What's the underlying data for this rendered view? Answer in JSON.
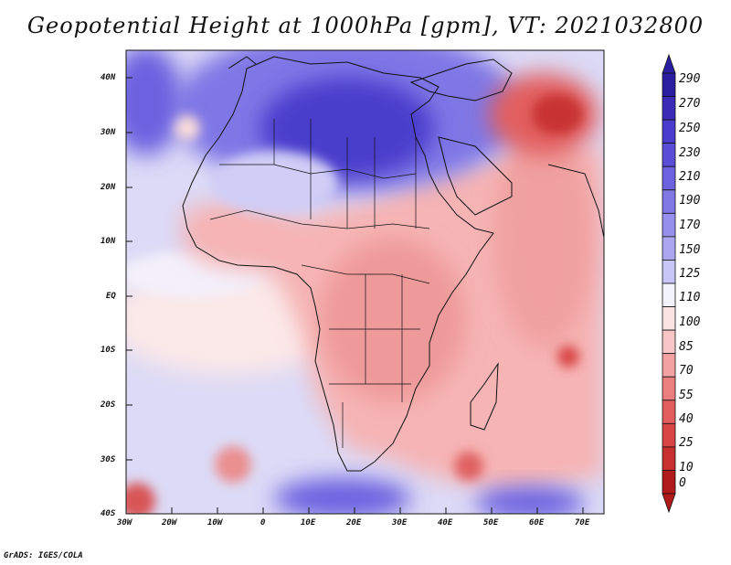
{
  "title": "Geopotential Height at 1000hPa [gpm], VT: 2021032800",
  "credit": "GrADS: IGES/COLA",
  "map": {
    "region": "Africa",
    "lat_labels": [
      "40N",
      "30N",
      "20N",
      "10N",
      "EQ",
      "10S",
      "20S",
      "30S",
      "40S"
    ],
    "lon_labels": [
      "30W",
      "20W",
      "10W",
      "0",
      "10E",
      "20E",
      "30E",
      "40E",
      "50E",
      "60E",
      "70E"
    ]
  },
  "colorbar": {
    "labels": [
      "290",
      "270",
      "250",
      "230",
      "210",
      "190",
      "170",
      "150",
      "125",
      "110",
      "100",
      "85",
      "70",
      "55",
      "40",
      "25",
      "10",
      "0"
    ],
    "colors": [
      "#2a1fa0",
      "#3b2bb8",
      "#4a3ccc",
      "#5a4ed8",
      "#6c62e0",
      "#8178e6",
      "#978fec",
      "#aca6f1",
      "#c8c5f7",
      "#f2f2fb",
      "#fbe3e3",
      "#f8c6c6",
      "#f2a2a2",
      "#eb7f7f",
      "#e25e5e",
      "#d84545",
      "#c83030",
      "#b01a1a"
    ]
  },
  "fields": {
    "ocean_bg": "#dfdcf6",
    "land_warm": "#f3a9a9",
    "high_core": "#3b2bb8",
    "low_core": "#d84545",
    "coast": "#111111"
  }
}
